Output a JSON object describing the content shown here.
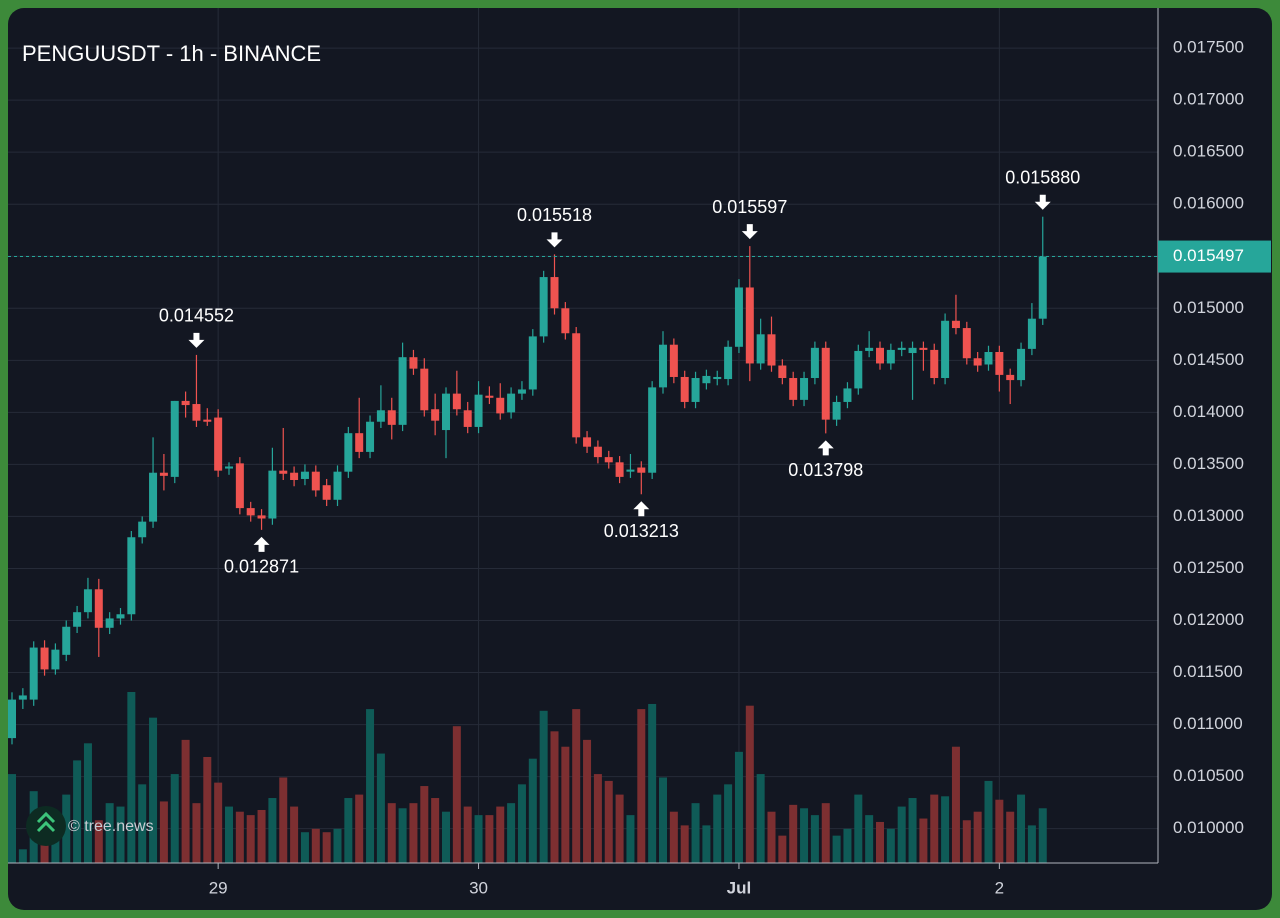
{
  "chart_data": {
    "type": "candlestick",
    "title": "PENGUUSDT - 1h - BINANCE",
    "watermark": "© tree.news",
    "categories": [
      null,
      null,
      null,
      null,
      null,
      null,
      null,
      null,
      null,
      null,
      null,
      null,
      null,
      null,
      null,
      null,
      null,
      null,
      null,
      "29",
      null,
      null,
      null,
      null,
      null,
      null,
      null,
      null,
      null,
      null,
      null,
      null,
      null,
      null,
      null,
      null,
      null,
      null,
      null,
      null,
      null,
      null,
      null,
      "30",
      null,
      null,
      null,
      null,
      null,
      null,
      null,
      null,
      null,
      null,
      null,
      null,
      null,
      null,
      null,
      null,
      null,
      null,
      null,
      null,
      null,
      null,
      null,
      "Jul",
      null,
      null,
      null,
      null,
      null,
      null,
      null,
      null,
      null,
      null,
      null,
      null,
      null,
      null,
      null,
      null,
      null,
      null,
      null,
      null,
      null,
      null,
      null,
      "2",
      null,
      null,
      null,
      null
    ],
    "open": [
      0.01087,
      0.01124,
      0.01124,
      0.01174,
      0.01153,
      0.01167,
      0.01194,
      0.01208,
      0.0123,
      0.01193,
      0.01202,
      0.01206,
      0.0128,
      0.01295,
      0.01342,
      0.01338,
      0.01411,
      0.01408,
      0.01393,
      0.01395,
      0.01346,
      0.01351,
      0.01308,
      0.01301,
      0.01298,
      0.01344,
      0.01342,
      0.01336,
      0.01343,
      0.0133,
      0.01316,
      0.01343,
      0.0138,
      0.01362,
      0.01391,
      0.01402,
      0.01388,
      0.01453,
      0.01442,
      0.01403,
      0.01383,
      0.01418,
      0.01402,
      0.01386,
      0.01416,
      0.01414,
      0.014,
      0.01418,
      0.01422,
      0.01473,
      0.0153,
      0.015,
      0.01476,
      0.01376,
      0.01367,
      0.01357,
      0.01352,
      0.01343,
      0.01347,
      0.01342,
      0.01424,
      0.01465,
      0.01434,
      0.0141,
      0.01428,
      0.01432,
      0.01432,
      0.01463,
      0.0152,
      0.01447,
      0.01475,
      0.01445,
      0.01433,
      0.01412,
      0.01433,
      0.01462,
      0.01393,
      0.0141,
      0.01423,
      0.01459,
      0.01462,
      0.01447,
      0.0146,
      0.01457,
      0.01462,
      0.0146,
      0.01433,
      0.01488,
      0.01481,
      0.01452,
      0.01446,
      0.01458,
      0.01436,
      0.01431,
      0.01461,
      0.0149
    ],
    "high": [
      0.01131,
      0.01135,
      0.0118,
      0.01181,
      0.01178,
      0.012,
      0.01214,
      0.01241,
      0.0124,
      0.01208,
      0.01212,
      0.01286,
      0.013,
      0.01376,
      0.0136,
      0.01411,
      0.0142,
      0.014552,
      0.01404,
      0.01403,
      0.01352,
      0.01357,
      0.01314,
      0.01307,
      0.01366,
      0.01385,
      0.01348,
      0.0135,
      0.01349,
      0.01336,
      0.01349,
      0.01386,
      0.01414,
      0.01397,
      0.01426,
      0.01414,
      0.01467,
      0.0146,
      0.01452,
      0.01418,
      0.01424,
      0.0144,
      0.0141,
      0.0143,
      0.01425,
      0.01428,
      0.01424,
      0.0143,
      0.0148,
      0.01536,
      0.015518,
      0.01506,
      0.01482,
      0.01382,
      0.01373,
      0.01363,
      0.01358,
      0.0136,
      0.01353,
      0.0143,
      0.01478,
      0.01471,
      0.0144,
      0.01439,
      0.01441,
      0.0144,
      0.01469,
      0.01528,
      0.015597,
      0.0149,
      0.01492,
      0.01451,
      0.01439,
      0.01439,
      0.01468,
      0.01468,
      0.01416,
      0.01429,
      0.01465,
      0.01478,
      0.01468,
      0.01466,
      0.01468,
      0.01468,
      0.01468,
      0.01466,
      0.01495,
      0.01513,
      0.01487,
      0.01458,
      0.01464,
      0.01464,
      0.01442,
      0.01467,
      0.01505,
      0.01588
    ],
    "low": [
      0.01081,
      0.01115,
      0.01118,
      0.01147,
      0.01148,
      0.01161,
      0.01188,
      0.01202,
      0.01165,
      0.01187,
      0.01196,
      0.012,
      0.01274,
      0.01289,
      0.01325,
      0.01332,
      0.01395,
      0.01386,
      0.01387,
      0.01338,
      0.0134,
      0.01302,
      0.01295,
      0.012871,
      0.01292,
      0.01335,
      0.01329,
      0.0133,
      0.01319,
      0.0131,
      0.0131,
      0.01337,
      0.01356,
      0.01356,
      0.01385,
      0.01374,
      0.01382,
      0.01436,
      0.01396,
      0.01378,
      0.01356,
      0.01397,
      0.0138,
      0.0138,
      0.01408,
      0.01393,
      0.01394,
      0.01412,
      0.01416,
      0.01467,
      0.01494,
      0.0147,
      0.0137,
      0.01361,
      0.01351,
      0.01346,
      0.01332,
      0.01337,
      0.013213,
      0.01336,
      0.01418,
      0.01428,
      0.01404,
      0.01404,
      0.01422,
      0.01426,
      0.01426,
      0.01457,
      0.0143,
      0.01441,
      0.01439,
      0.01427,
      0.01406,
      0.01406,
      0.01427,
      0.013798,
      0.01387,
      0.01404,
      0.01417,
      0.01453,
      0.01441,
      0.01441,
      0.01454,
      0.01412,
      0.0144,
      0.01427,
      0.01427,
      0.01475,
      0.01446,
      0.01439,
      0.0144,
      0.0142,
      0.01408,
      0.01425,
      0.01455,
      0.01484
    ],
    "close": [
      0.01124,
      0.01128,
      0.01174,
      0.01153,
      0.01172,
      0.01194,
      0.01208,
      0.0123,
      0.01193,
      0.01202,
      0.01206,
      0.0128,
      0.01295,
      0.01342,
      0.01339,
      0.01411,
      0.01407,
      0.01392,
      0.01391,
      0.01344,
      0.01348,
      0.01308,
      0.01301,
      0.01298,
      0.01344,
      0.01341,
      0.01335,
      0.01343,
      0.01325,
      0.01316,
      0.01343,
      0.0138,
      0.01362,
      0.01391,
      0.01402,
      0.01388,
      0.01453,
      0.01442,
      0.01402,
      0.01392,
      0.01418,
      0.01403,
      0.01386,
      0.01417,
      0.01414,
      0.01399,
      0.01418,
      0.01422,
      0.01473,
      0.0153,
      0.015,
      0.01476,
      0.01376,
      0.01367,
      0.01357,
      0.01352,
      0.01338,
      0.01345,
      0.01342,
      0.01424,
      0.01465,
      0.01434,
      0.0141,
      0.01433,
      0.01435,
      0.01434,
      0.01463,
      0.0152,
      0.01447,
      0.01475,
      0.01445,
      0.01433,
      0.01412,
      0.01433,
      0.01462,
      0.01393,
      0.0141,
      0.01423,
      0.01459,
      0.01462,
      0.01447,
      0.0146,
      0.01462,
      0.01462,
      0.0146,
      0.01433,
      0.01488,
      0.01481,
      0.01452,
      0.01445,
      0.01458,
      0.01436,
      0.01431,
      0.01461,
      0.0149,
      0.015497
    ],
    "volume": [
      52,
      8,
      42,
      20,
      25,
      40,
      60,
      70,
      25,
      35,
      33,
      100,
      46,
      85,
      36,
      52,
      72,
      35,
      62,
      47,
      33,
      30,
      28,
      31,
      38,
      50,
      33,
      18,
      20,
      18,
      20,
      38,
      40,
      90,
      64,
      35,
      32,
      35,
      45,
      38,
      30,
      80,
      33,
      28,
      28,
      33,
      35,
      46,
      61,
      89,
      77,
      68,
      90,
      72,
      52,
      48,
      40,
      28,
      90,
      93,
      50,
      30,
      22,
      35,
      22,
      40,
      46,
      65,
      92,
      52,
      30,
      16,
      34,
      32,
      28,
      35,
      16,
      20,
      40,
      28,
      24,
      20,
      33,
      38,
      26,
      40,
      39,
      68,
      25,
      30,
      48,
      37,
      30,
      40,
      22,
      32
    ],
    "up_color": "#26a69a",
    "down_color": "#ef5350",
    "volume_up_color": "#0f5b57",
    "volume_down_color": "#7d2f31",
    "highs": [
      0.014552,
      0.015518,
      0.015597,
      {
        "value": 0.01588,
        "label": "0.015880"
      }
    ],
    "lows": [
      0.012871,
      0.013213,
      0.013798
    ],
    "ylim": [
      0.00967,
      0.01777
    ],
    "yticks": [
      {
        "value": 0.01,
        "label": "0.010000"
      },
      {
        "value": 0.0105,
        "label": "0.010500"
      },
      {
        "value": 0.011,
        "label": "0.011000"
      },
      {
        "value": 0.0115,
        "label": "0.011500"
      },
      {
        "value": 0.012,
        "label": "0.012000"
      },
      {
        "value": 0.0125,
        "label": "0.012500"
      },
      {
        "value": 0.013,
        "label": "0.013000"
      },
      {
        "value": 0.0135,
        "label": "0.013500"
      },
      {
        "value": 0.014,
        "label": "0.014000"
      },
      {
        "value": 0.0145,
        "label": "0.014500"
      },
      {
        "value": 0.015,
        "label": "0.015000"
      },
      {
        "value": 0.0155,
        "label": "0.015500"
      },
      {
        "value": 0.016,
        "label": "0.016000"
      },
      {
        "value": 0.0165,
        "label": "0.016500"
      },
      {
        "value": 0.017,
        "label": "0.017000"
      },
      {
        "value": 0.0175,
        "label": "0.017500"
      }
    ],
    "grid": true
  }
}
